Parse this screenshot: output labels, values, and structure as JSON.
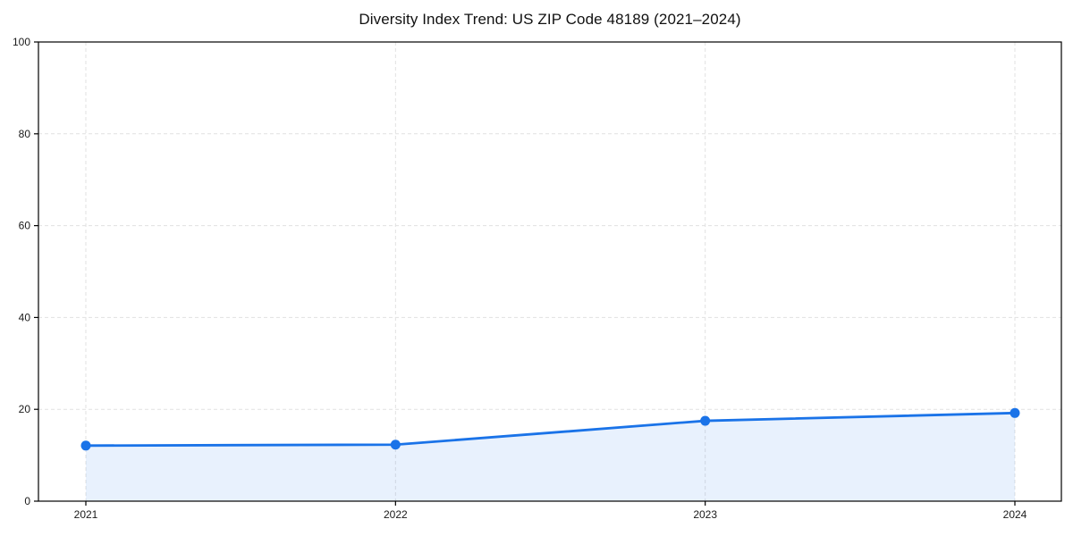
{
  "page": {
    "background": "#ffffff"
  },
  "chart_data": {
    "type": "line",
    "title": "Diversity Index Trend: US ZIP Code 48189 (2021–2024)",
    "categories": [
      "2021",
      "2022",
      "2023",
      "2024"
    ],
    "series": [
      {
        "name": "Diversity Index",
        "values": [
          12.1,
          12.3,
          17.5,
          19.2
        ]
      }
    ],
    "xlabel": "",
    "ylabel": "",
    "ylim": [
      0,
      100
    ],
    "yticks": [
      0,
      20,
      40,
      60,
      80,
      100
    ],
    "grid": "dashed-both-directions",
    "legend": "none",
    "area_fill": true,
    "marker": "circle",
    "colors": {
      "line": "#1a73e8",
      "marker": "#1a73e8",
      "area": "#1a73e8",
      "area_opacity": 0.1,
      "grid": "#e1e1e1",
      "axis": "#000000",
      "text": "#1a1a1a",
      "title": "#111111"
    }
  }
}
